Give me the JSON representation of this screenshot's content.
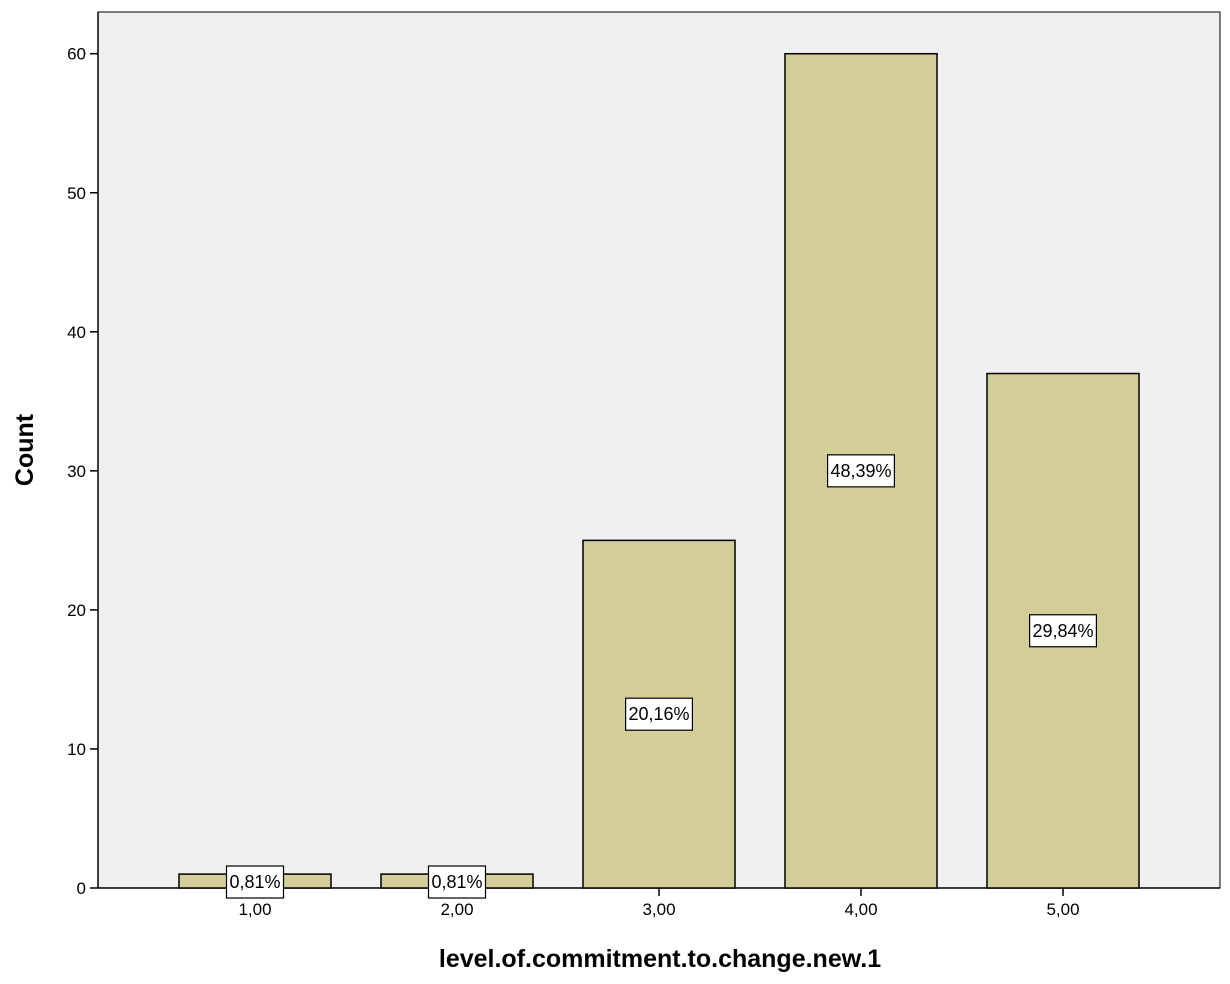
{
  "chart_data": {
    "type": "bar",
    "categories": [
      "1,00",
      "2,00",
      "3,00",
      "4,00",
      "5,00"
    ],
    "values": [
      1,
      1,
      25,
      60,
      37
    ],
    "data_labels": [
      "0,81%",
      "0,81%",
      "20,16%",
      "48,39%",
      "29,84%"
    ],
    "title": "",
    "xlabel": "level.of.commitment.to.change.new.1",
    "ylabel": "Count",
    "ylim": [
      0,
      63
    ],
    "yticks": [
      "0",
      "10",
      "20",
      "30",
      "40",
      "50",
      "60"
    ],
    "grid": false,
    "legend": "none",
    "colors": {
      "plot_background": "#f0f0f0",
      "bar_fill": "#d3ce97",
      "bar_stroke": "#000000",
      "label_box_fill": "#ffffff"
    }
  }
}
